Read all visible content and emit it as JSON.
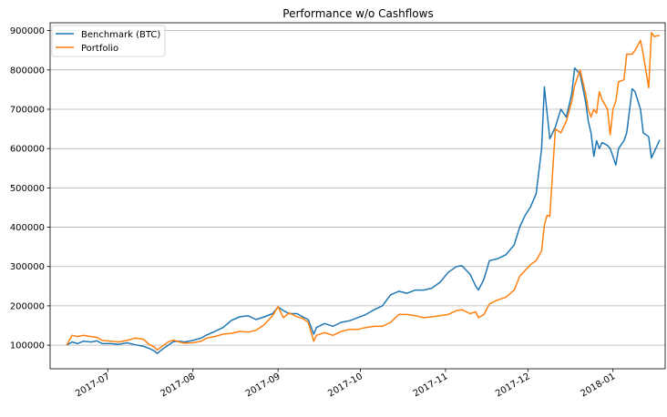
{
  "chart_data": {
    "type": "line",
    "title": "Performance w/o Cashflows",
    "xlabel": "",
    "ylabel": "",
    "x_range": [
      "2017-06-10",
      "2018-01-20"
    ],
    "ylim": [
      40000,
      920000
    ],
    "y_ticks": [
      100000,
      200000,
      300000,
      400000,
      500000,
      600000,
      700000,
      800000,
      900000
    ],
    "y_tick_labels": [
      "100000",
      "200000",
      "300000",
      "400000",
      "500000",
      "600000",
      "700000",
      "800000",
      "900000"
    ],
    "x_ticks": [
      "2017-07-01",
      "2017-08-01",
      "2017-09-01",
      "2017-10-01",
      "2017-11-01",
      "2017-12-01",
      "2018-01-01"
    ],
    "x_tick_labels": [
      "2017-07",
      "2017-08",
      "2017-09",
      "2017-10",
      "2017-11",
      "2017-12",
      "2018-01"
    ],
    "grid": "horizontal",
    "legend_position": "top-left",
    "series": [
      {
        "name": "Benchmark (BTC)",
        "color": "#1f77b4",
        "points": [
          [
            "2017-06-16",
            100000
          ],
          [
            "2017-06-18",
            108000
          ],
          [
            "2017-06-20",
            104000
          ],
          [
            "2017-06-22",
            110000
          ],
          [
            "2017-06-25",
            108000
          ],
          [
            "2017-06-27",
            111000
          ],
          [
            "2017-06-29",
            104000
          ],
          [
            "2017-07-02",
            104000
          ],
          [
            "2017-07-05",
            102000
          ],
          [
            "2017-07-08",
            106000
          ],
          [
            "2017-07-11",
            101000
          ],
          [
            "2017-07-14",
            97000
          ],
          [
            "2017-07-16",
            92000
          ],
          [
            "2017-07-18",
            85000
          ],
          [
            "2017-07-19",
            79000
          ],
          [
            "2017-07-21",
            90000
          ],
          [
            "2017-07-23",
            100000
          ],
          [
            "2017-07-25",
            109000
          ],
          [
            "2017-07-27",
            110000
          ],
          [
            "2017-07-29",
            108000
          ],
          [
            "2017-08-01",
            112000
          ],
          [
            "2017-08-04",
            118000
          ],
          [
            "2017-08-06",
            126000
          ],
          [
            "2017-08-09",
            135000
          ],
          [
            "2017-08-12",
            145000
          ],
          [
            "2017-08-15",
            163000
          ],
          [
            "2017-08-18",
            172000
          ],
          [
            "2017-08-21",
            175000
          ],
          [
            "2017-08-24",
            165000
          ],
          [
            "2017-08-27",
            172000
          ],
          [
            "2017-08-30",
            180000
          ],
          [
            "2017-09-01",
            197000
          ],
          [
            "2017-09-03",
            188000
          ],
          [
            "2017-09-05",
            180000
          ],
          [
            "2017-09-08",
            180000
          ],
          [
            "2017-09-10",
            172000
          ],
          [
            "2017-09-12",
            165000
          ],
          [
            "2017-09-14",
            128000
          ],
          [
            "2017-09-15",
            145000
          ],
          [
            "2017-09-18",
            155000
          ],
          [
            "2017-09-21",
            148000
          ],
          [
            "2017-09-24",
            158000
          ],
          [
            "2017-09-27",
            162000
          ],
          [
            "2017-09-30",
            170000
          ],
          [
            "2017-10-03",
            178000
          ],
          [
            "2017-10-06",
            190000
          ],
          [
            "2017-10-09",
            200000
          ],
          [
            "2017-10-12",
            228000
          ],
          [
            "2017-10-15",
            237000
          ],
          [
            "2017-10-18",
            232000
          ],
          [
            "2017-10-21",
            240000
          ],
          [
            "2017-10-24",
            240000
          ],
          [
            "2017-10-27",
            245000
          ],
          [
            "2017-10-30",
            260000
          ],
          [
            "2017-11-02",
            285000
          ],
          [
            "2017-11-05",
            300000
          ],
          [
            "2017-11-07",
            302000
          ],
          [
            "2017-11-10",
            280000
          ],
          [
            "2017-11-12",
            250000
          ],
          [
            "2017-11-13",
            240000
          ],
          [
            "2017-11-15",
            268000
          ],
          [
            "2017-11-17",
            315000
          ],
          [
            "2017-11-20",
            320000
          ],
          [
            "2017-11-23",
            330000
          ],
          [
            "2017-11-26",
            355000
          ],
          [
            "2017-11-28",
            400000
          ],
          [
            "2017-11-30",
            430000
          ],
          [
            "2017-12-02",
            452000
          ],
          [
            "2017-12-04",
            485000
          ],
          [
            "2017-12-06",
            600000
          ],
          [
            "2017-12-07",
            757000
          ],
          [
            "2017-12-08",
            690000
          ],
          [
            "2017-12-09",
            625000
          ],
          [
            "2017-12-11",
            655000
          ],
          [
            "2017-12-13",
            700000
          ],
          [
            "2017-12-15",
            680000
          ],
          [
            "2017-12-17",
            740000
          ],
          [
            "2017-12-18",
            805000
          ],
          [
            "2017-12-20",
            790000
          ],
          [
            "2017-12-22",
            720000
          ],
          [
            "2017-12-23",
            670000
          ],
          [
            "2017-12-24",
            640000
          ],
          [
            "2017-12-25",
            580000
          ],
          [
            "2017-12-26",
            620000
          ],
          [
            "2017-12-27",
            600000
          ],
          [
            "2017-12-28",
            615000
          ],
          [
            "2017-12-30",
            608000
          ],
          [
            "2017-12-31",
            600000
          ],
          [
            "2018-01-01",
            580000
          ],
          [
            "2018-01-02",
            558000
          ],
          [
            "2018-01-03",
            600000
          ],
          [
            "2018-01-05",
            620000
          ],
          [
            "2018-01-06",
            640000
          ],
          [
            "2018-01-08",
            752000
          ],
          [
            "2018-01-09",
            745000
          ],
          [
            "2018-01-11",
            700000
          ],
          [
            "2018-01-12",
            640000
          ],
          [
            "2018-01-14",
            630000
          ],
          [
            "2018-01-15",
            576000
          ],
          [
            "2018-01-18",
            622000
          ]
        ]
      },
      {
        "name": "Portfolio",
        "color": "#ff7f0e",
        "points": [
          [
            "2017-06-16",
            100000
          ],
          [
            "2017-06-18",
            125000
          ],
          [
            "2017-06-20",
            122000
          ],
          [
            "2017-06-22",
            125000
          ],
          [
            "2017-06-25",
            122000
          ],
          [
            "2017-06-27",
            120000
          ],
          [
            "2017-06-29",
            112000
          ],
          [
            "2017-07-02",
            110000
          ],
          [
            "2017-07-05",
            108000
          ],
          [
            "2017-07-08",
            112000
          ],
          [
            "2017-07-11",
            118000
          ],
          [
            "2017-07-14",
            115000
          ],
          [
            "2017-07-16",
            102000
          ],
          [
            "2017-07-18",
            95000
          ],
          [
            "2017-07-19",
            88000
          ],
          [
            "2017-07-21",
            98000
          ],
          [
            "2017-07-23",
            108000
          ],
          [
            "2017-07-25",
            113000
          ],
          [
            "2017-07-27",
            108000
          ],
          [
            "2017-07-29",
            105000
          ],
          [
            "2017-08-01",
            106000
          ],
          [
            "2017-08-04",
            110000
          ],
          [
            "2017-08-06",
            118000
          ],
          [
            "2017-08-09",
            122000
          ],
          [
            "2017-08-12",
            128000
          ],
          [
            "2017-08-15",
            130000
          ],
          [
            "2017-08-18",
            135000
          ],
          [
            "2017-08-21",
            133000
          ],
          [
            "2017-08-24",
            138000
          ],
          [
            "2017-08-27",
            152000
          ],
          [
            "2017-08-30",
            175000
          ],
          [
            "2017-09-01",
            198000
          ],
          [
            "2017-09-03",
            170000
          ],
          [
            "2017-09-05",
            182000
          ],
          [
            "2017-09-08",
            172000
          ],
          [
            "2017-09-10",
            168000
          ],
          [
            "2017-09-12",
            158000
          ],
          [
            "2017-09-14",
            110000
          ],
          [
            "2017-09-15",
            125000
          ],
          [
            "2017-09-18",
            132000
          ],
          [
            "2017-09-21",
            125000
          ],
          [
            "2017-09-24",
            135000
          ],
          [
            "2017-09-27",
            140000
          ],
          [
            "2017-09-30",
            140000
          ],
          [
            "2017-10-03",
            145000
          ],
          [
            "2017-10-06",
            148000
          ],
          [
            "2017-10-09",
            148000
          ],
          [
            "2017-10-12",
            158000
          ],
          [
            "2017-10-15",
            178000
          ],
          [
            "2017-10-18",
            178000
          ],
          [
            "2017-10-21",
            175000
          ],
          [
            "2017-10-24",
            170000
          ],
          [
            "2017-10-27",
            172000
          ],
          [
            "2017-10-30",
            175000
          ],
          [
            "2017-11-02",
            178000
          ],
          [
            "2017-11-05",
            188000
          ],
          [
            "2017-11-07",
            190000
          ],
          [
            "2017-11-10",
            180000
          ],
          [
            "2017-11-12",
            185000
          ],
          [
            "2017-11-13",
            170000
          ],
          [
            "2017-11-15",
            178000
          ],
          [
            "2017-11-17",
            205000
          ],
          [
            "2017-11-20",
            215000
          ],
          [
            "2017-11-23",
            222000
          ],
          [
            "2017-11-26",
            240000
          ],
          [
            "2017-11-28",
            275000
          ],
          [
            "2017-11-30",
            290000
          ],
          [
            "2017-12-02",
            305000
          ],
          [
            "2017-12-04",
            315000
          ],
          [
            "2017-12-06",
            340000
          ],
          [
            "2017-12-07",
            405000
          ],
          [
            "2017-12-08",
            430000
          ],
          [
            "2017-12-09",
            428000
          ],
          [
            "2017-12-11",
            650000
          ],
          [
            "2017-12-13",
            640000
          ],
          [
            "2017-12-15",
            670000
          ],
          [
            "2017-12-17",
            720000
          ],
          [
            "2017-12-18",
            760000
          ],
          [
            "2017-12-20",
            800000
          ],
          [
            "2017-12-22",
            740000
          ],
          [
            "2017-12-23",
            700000
          ],
          [
            "2017-12-24",
            680000
          ],
          [
            "2017-12-25",
            700000
          ],
          [
            "2017-12-26",
            690000
          ],
          [
            "2017-12-27",
            745000
          ],
          [
            "2017-12-28",
            725000
          ],
          [
            "2017-12-30",
            700000
          ],
          [
            "2017-12-31",
            635000
          ],
          [
            "2018-01-01",
            700000
          ],
          [
            "2018-01-02",
            720000
          ],
          [
            "2018-01-03",
            770000
          ],
          [
            "2018-01-05",
            775000
          ],
          [
            "2018-01-06",
            840000
          ],
          [
            "2018-01-08",
            840000
          ],
          [
            "2018-01-09",
            850000
          ],
          [
            "2018-01-11",
            875000
          ],
          [
            "2018-01-12",
            840000
          ],
          [
            "2018-01-14",
            755000
          ],
          [
            "2018-01-15",
            895000
          ],
          [
            "2018-01-16",
            885000
          ],
          [
            "2018-01-18",
            888000
          ]
        ]
      }
    ]
  }
}
